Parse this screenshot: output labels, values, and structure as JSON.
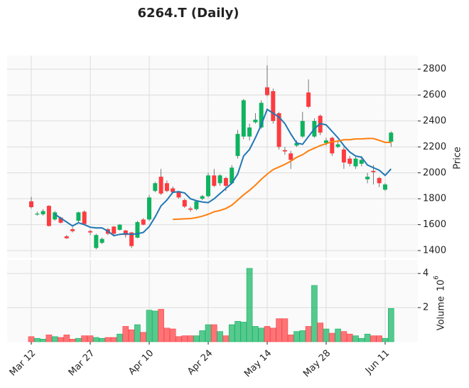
{
  "chart_data": {
    "type": "candlestick",
    "title": "6264.T (Daily)",
    "ylabel": "Price",
    "volume_label": "Volume",
    "volume_offset_base": "10",
    "volume_offset_exponent": "6",
    "x": [
      "Mar 12",
      null,
      null,
      null,
      null,
      null,
      null,
      null,
      null,
      null,
      "Mar 27",
      null,
      null,
      null,
      null,
      null,
      null,
      null,
      null,
      null,
      "Apr 10",
      null,
      null,
      null,
      null,
      null,
      null,
      null,
      null,
      null,
      "Apr 24",
      null,
      null,
      null,
      null,
      null,
      null,
      null,
      null,
      null,
      "May 14",
      null,
      null,
      null,
      null,
      null,
      null,
      null,
      null,
      null,
      "May 28",
      null,
      null,
      null,
      null,
      null,
      null,
      null,
      null,
      null,
      "Jun 11",
      null
    ],
    "open": [
      1780,
      1678,
      1680,
      1745,
      1640,
      1655,
      1510,
      1565,
      1630,
      1700,
      1550,
      1420,
      1460,
      1565,
      1585,
      1560,
      1555,
      1540,
      1500,
      1640,
      1640,
      1860,
      1970,
      1920,
      1880,
      1855,
      1790,
      1725,
      1720,
      1800,
      1820,
      1980,
      1920,
      1960,
      1920,
      2130,
      2280,
      2280,
      2390,
      2350,
      2660,
      2630,
      2460,
      2175,
      2150,
      2210,
      2280,
      2620,
      2280,
      2440,
      2230,
      2270,
      2200,
      2180,
      2110,
      2050,
      2070,
      1950,
      2015,
      1960,
      1870,
      2240
    ],
    "high": [
      1815,
      1700,
      1720,
      1750,
      1705,
      1660,
      1520,
      1580,
      1700,
      1710,
      1560,
      1530,
      1500,
      1575,
      1590,
      1605,
      1560,
      1545,
      1630,
      1650,
      1830,
      1930,
      2030,
      1940,
      1895,
      1860,
      1800,
      1740,
      1790,
      1830,
      2000,
      2030,
      1990,
      1970,
      2060,
      2330,
      2570,
      2380,
      2460,
      2560,
      2830,
      2650,
      2470,
      2200,
      2170,
      2250,
      2470,
      2720,
      2420,
      2450,
      2270,
      2280,
      2250,
      2200,
      2130,
      2130,
      2130,
      2000,
      2060,
      1970,
      1920,
      2320
    ],
    "low": [
      1725,
      1670,
      1670,
      1585,
      1630,
      1610,
      1490,
      1540,
      1620,
      1600,
      1520,
      1410,
      1450,
      1520,
      1510,
      1555,
      1500,
      1420,
      1495,
      1595,
      1630,
      1850,
      1830,
      1850,
      1840,
      1800,
      1730,
      1700,
      1710,
      1790,
      1810,
      1890,
      1900,
      1860,
      1910,
      2110,
      2260,
      2250,
      2380,
      2340,
      2590,
      2380,
      2180,
      2140,
      2030,
      2200,
      2270,
      2500,
      2270,
      2290,
      2210,
      2130,
      2190,
      2030,
      2050,
      2030,
      2050,
      1920,
      1910,
      1890,
      1860,
      2200
    ],
    "close": [
      1735,
      1685,
      1705,
      1590,
      1695,
      1615,
      1495,
      1550,
      1695,
      1605,
      1540,
      1520,
      1490,
      1530,
      1530,
      1600,
      1520,
      1435,
      1620,
      1600,
      1810,
      1920,
      1840,
      1860,
      1850,
      1810,
      1740,
      1715,
      1780,
      1820,
      1980,
      1900,
      1980,
      1900,
      2040,
      2300,
      2560,
      2350,
      2410,
      2540,
      2600,
      2400,
      2200,
      2165,
      2100,
      2230,
      2400,
      2510,
      2400,
      2310,
      2250,
      2150,
      2220,
      2080,
      2070,
      2110,
      2100,
      1970,
      2005,
      1920,
      1910,
      2310
    ],
    "volume": [
      0.3,
      0.2,
      0.15,
      0.4,
      0.3,
      0.25,
      0.4,
      0.15,
      0.2,
      0.35,
      0.35,
      0.25,
      0.2,
      0.25,
      0.25,
      0.45,
      0.9,
      0.7,
      1.0,
      0.55,
      1.85,
      1.8,
      1.9,
      0.8,
      0.75,
      0.3,
      0.35,
      0.35,
      0.35,
      0.65,
      1.0,
      1.0,
      0.6,
      0.35,
      1.0,
      1.2,
      1.15,
      4.3,
      0.9,
      0.8,
      0.9,
      0.8,
      1.35,
      1.35,
      0.4,
      0.6,
      0.65,
      0.9,
      3.3,
      1.1,
      0.75,
      0.5,
      0.75,
      0.6,
      0.45,
      0.35,
      0.2,
      0.45,
      0.35,
      0.35,
      0.2,
      1.95
    ],
    "moving_averages": [
      {
        "color": "#1f77b4",
        "values": [
          null,
          null,
          null,
          null,
          1680,
          1650,
          1620,
          1590,
          1615,
          1600,
          1580,
          1575,
          1575,
          1550,
          1515,
          1525,
          1530,
          1525,
          1530,
          1540,
          1585,
          1660,
          1745,
          1790,
          1850,
          1855,
          1845,
          1800,
          1785,
          1775,
          1770,
          1800,
          1840,
          1880,
          1920,
          1990,
          2130,
          2180,
          2270,
          2370,
          2490,
          2460,
          2430,
          2380,
          2300,
          2230,
          2220,
          2280,
          2340,
          2380,
          2370,
          2320,
          2270,
          2210,
          2160,
          2130,
          2120,
          2060,
          2040,
          2020,
          1980,
          2030
        ]
      },
      {
        "color": "#ff7f0e",
        "values": [
          null,
          null,
          null,
          null,
          null,
          null,
          null,
          null,
          null,
          null,
          null,
          null,
          null,
          null,
          null,
          null,
          null,
          null,
          null,
          null,
          null,
          null,
          null,
          null,
          1640,
          1643,
          1645,
          1647,
          1655,
          1665,
          1680,
          1700,
          1710,
          1725,
          1750,
          1790,
          1830,
          1865,
          1905,
          1950,
          1990,
          2025,
          2045,
          2065,
          2090,
          2120,
          2140,
          2170,
          2190,
          2210,
          2225,
          2240,
          2245,
          2255,
          2255,
          2262,
          2262,
          2265,
          2265,
          2250,
          2235,
          2235
        ]
      }
    ],
    "up_color": "#0fb35f",
    "down_color": "#fe3b3f",
    "wick_color": "#555555",
    "ylim": [
      1345,
      2905
    ],
    "yticks": [
      1400,
      1600,
      1800,
      2000,
      2200,
      2400,
      2600,
      2800
    ],
    "volume_ylim": [
      0,
      4.8
    ],
    "volume_yticks": [
      2,
      4
    ],
    "grid": true
  }
}
